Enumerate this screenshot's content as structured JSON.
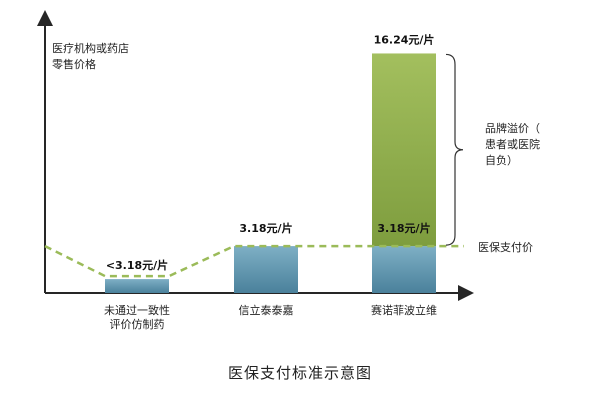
{
  "chart_data": {
    "type": "bar",
    "title": "医保支付标准示意图",
    "ylabel": [
      "医疗机构或药店",
      "零售价格"
    ],
    "categories": [
      [
        "未通过一致性",
        "评价仿制药"
      ],
      [
        "信立泰泰嘉"
      ],
      [
        "赛诺菲波立维"
      ]
    ],
    "series": [
      {
        "values": [
          3.18,
          3.18,
          3.18
        ]
      },
      {
        "values": [
          0,
          0,
          13.06
        ]
      }
    ],
    "value_labels": [
      "<3.18元/片",
      "3.18元/片",
      "3.18元/片",
      "16.24元/片"
    ],
    "reference_line": {
      "label": "医保支付价",
      "value": 3.18
    },
    "brand_premium": {
      "label": [
        "品牌溢价（",
        "患者或医院",
        "自负）"
      ],
      "from": 3.18,
      "to": 16.24
    },
    "colors": {
      "base": "#5b93ad",
      "premium": "#8aa84a",
      "reference_line": "#9bbb59",
      "axis": "#262626"
    },
    "ylim": [
      0,
      18.5
    ],
    "legend": "none",
    "grid": false
  }
}
